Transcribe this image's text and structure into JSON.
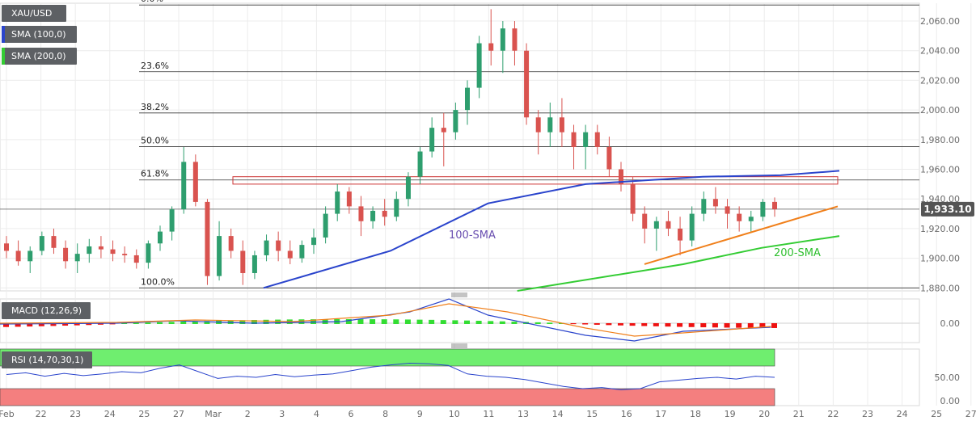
{
  "symbol": "XAU/USD",
  "indicators": {
    "sma100": "SMA (100,0)",
    "sma200": "SMA (200,0)",
    "macd": "MACD (12,26,9)",
    "rsi": "RSI (14,70,30,1)"
  },
  "colors": {
    "bull": "#2e9e6e",
    "bear": "#d9534f",
    "sma100": "#2a44cc",
    "sma200": "#33cc33",
    "trend": "#f07f1a",
    "zone": "#cc3333",
    "macd_line": "#2a44cc",
    "signal_line": "#f07f1a",
    "rsi_line": "#2a44cc",
    "ob_fill": "#6fee6f",
    "os_fill": "#f47f7f"
  },
  "price_label": "1,933.10",
  "annotations": {
    "sma100_label": "100-SMA",
    "sma200_label": "200-SMA"
  },
  "fib_levels": [
    {
      "label": "0.0%",
      "price": 2070.8
    },
    {
      "label": "23.6%",
      "price": 2025.8
    },
    {
      "label": "38.2%",
      "price": 1998.0
    },
    {
      "label": "50.0%",
      "price": 1975.3
    },
    {
      "label": "61.8%",
      "price": 1952.8
    },
    {
      "label": "100.0%",
      "price": 1880.0
    }
  ],
  "price_axis": [
    "2,060.00",
    "2,040.00",
    "2,020.00",
    "2,000.00",
    "1,980.00",
    "1,960.00",
    "1,940.00",
    "1,920.00",
    "1,900.00",
    "1,880.00"
  ],
  "macd_axis": [
    "0.00"
  ],
  "rsi_axis": [
    "50.00",
    "0.00"
  ],
  "time_axis": [
    "Feb",
    "22",
    "23",
    "24",
    "25",
    "27",
    "Mar",
    "2",
    "3",
    "4",
    "6",
    "8",
    "9",
    "10",
    "11",
    "13",
    "14",
    "15",
    "16",
    "17",
    "18",
    "19",
    "20",
    "21",
    "22",
    "23",
    "24",
    "25",
    "27"
  ],
  "chart_data": {
    "type": "candlestick",
    "title": "XAU/USD",
    "ylim": [
      1878,
      2072
    ],
    "current_price": 1933.1,
    "resistance_zone": [
      1950,
      1955
    ],
    "candles": [
      [
        1910,
        1915,
        1900,
        1905
      ],
      [
        1905,
        1912,
        1895,
        1898
      ],
      [
        1898,
        1908,
        1890,
        1905
      ],
      [
        1905,
        1918,
        1902,
        1915
      ],
      [
        1915,
        1920,
        1903,
        1907
      ],
      [
        1907,
        1912,
        1893,
        1898
      ],
      [
        1898,
        1910,
        1890,
        1903
      ],
      [
        1903,
        1913,
        1897,
        1908
      ],
      [
        1908,
        1915,
        1900,
        1906
      ],
      [
        1906,
        1912,
        1898,
        1903
      ],
      [
        1903,
        1908,
        1897,
        1902
      ],
      [
        1902,
        1906,
        1893,
        1897
      ],
      [
        1897,
        1912,
        1893,
        1910
      ],
      [
        1910,
        1922,
        1905,
        1918
      ],
      [
        1918,
        1935,
        1912,
        1933
      ],
      [
        1933,
        1975,
        1930,
        1965
      ],
      [
        1965,
        1970,
        1935,
        1938
      ],
      [
        1938,
        1940,
        1882,
        1888
      ],
      [
        1888,
        1925,
        1885,
        1915
      ],
      [
        1915,
        1920,
        1900,
        1905
      ],
      [
        1905,
        1912,
        1882,
        1890
      ],
      [
        1890,
        1905,
        1886,
        1902
      ],
      [
        1902,
        1916,
        1898,
        1912
      ],
      [
        1912,
        1918,
        1898,
        1905
      ],
      [
        1905,
        1912,
        1896,
        1900
      ],
      [
        1900,
        1912,
        1897,
        1909
      ],
      [
        1909,
        1920,
        1903,
        1914
      ],
      [
        1914,
        1935,
        1910,
        1930
      ],
      [
        1930,
        1950,
        1925,
        1945
      ],
      [
        1945,
        1948,
        1930,
        1935
      ],
      [
        1935,
        1942,
        1915,
        1925
      ],
      [
        1925,
        1935,
        1920,
        1932
      ],
      [
        1932,
        1940,
        1922,
        1928
      ],
      [
        1928,
        1945,
        1925,
        1940
      ],
      [
        1940,
        1958,
        1935,
        1955
      ],
      [
        1955,
        1975,
        1950,
        1972
      ],
      [
        1972,
        1995,
        1968,
        1988
      ],
      [
        1988,
        1998,
        1962,
        1985
      ],
      [
        1985,
        2005,
        1980,
        2000
      ],
      [
        2000,
        2020,
        1990,
        2015
      ],
      [
        2015,
        2050,
        2008,
        2045
      ],
      [
        2045,
        2068,
        2030,
        2040
      ],
      [
        2040,
        2060,
        2025,
        2055
      ],
      [
        2055,
        2060,
        2030,
        2040
      ],
      [
        2040,
        2045,
        1990,
        1995
      ],
      [
        1995,
        2000,
        1970,
        1985
      ],
      [
        1985,
        2005,
        1975,
        1995
      ],
      [
        1995,
        2008,
        1975,
        1985
      ],
      [
        1985,
        1990,
        1960,
        1975
      ],
      [
        1975,
        1990,
        1960,
        1985
      ],
      [
        1985,
        1990,
        1970,
        1975
      ],
      [
        1975,
        1982,
        1955,
        1960
      ],
      [
        1960,
        1965,
        1945,
        1950
      ],
      [
        1950,
        1955,
        1925,
        1930
      ],
      [
        1930,
        1935,
        1910,
        1920
      ],
      [
        1920,
        1928,
        1905,
        1925
      ],
      [
        1925,
        1932,
        1915,
        1920
      ],
      [
        1920,
        1928,
        1902,
        1912
      ],
      [
        1912,
        1935,
        1908,
        1930
      ],
      [
        1930,
        1945,
        1925,
        1940
      ],
      [
        1940,
        1948,
        1930,
        1935
      ],
      [
        1935,
        1940,
        1920,
        1930
      ],
      [
        1930,
        1935,
        1918,
        1925
      ],
      [
        1925,
        1932,
        1918,
        1928
      ],
      [
        1928,
        1940,
        1925,
        1938
      ],
      [
        1938,
        1941,
        1928,
        1933.1
      ]
    ],
    "sma100": [
      [
        0.27,
        1880
      ],
      [
        0.4,
        1905
      ],
      [
        0.5,
        1937
      ],
      [
        0.6,
        1950
      ],
      [
        0.72,
        1955
      ],
      [
        0.8,
        1956
      ],
      [
        0.86,
        1959
      ]
    ],
    "sma200": [
      [
        0.53,
        1878
      ],
      [
        0.7,
        1896
      ],
      [
        0.78,
        1907
      ],
      [
        0.86,
        1915
      ]
    ],
    "trendline_start": 1896,
    "trendline_end": 1935,
    "macd_zero_hist": [],
    "rsi_levels": {
      "overbought": 70,
      "oversold": 30
    }
  }
}
